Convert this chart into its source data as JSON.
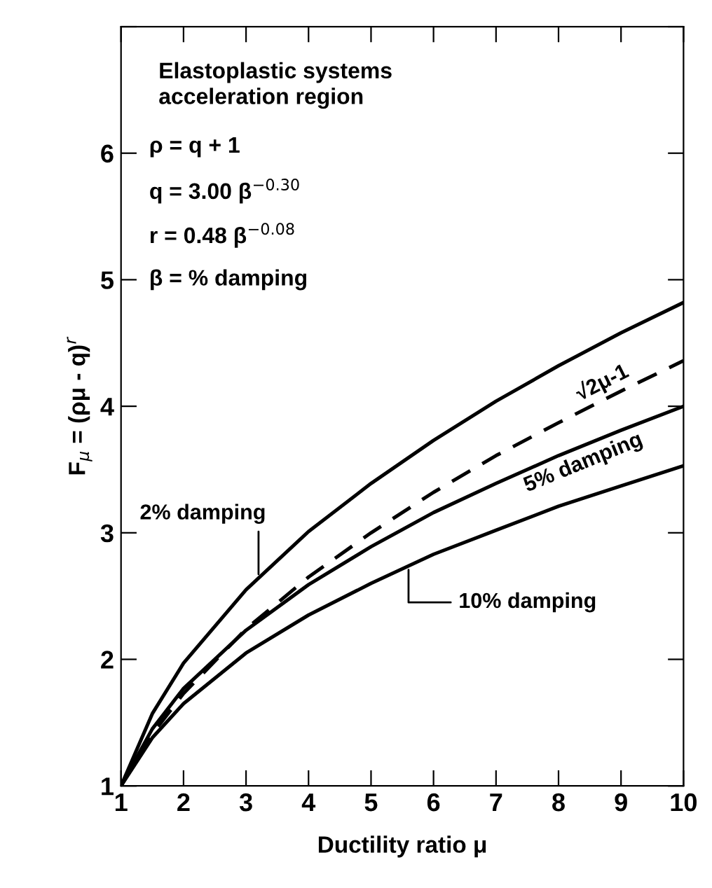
{
  "chart_data": {
    "type": "line",
    "xlabel": "Ductility ratio μ",
    "ylabel": "F$_{μ}$ = (ρμ - q)$^{r}$",
    "x": [
      1,
      1.5,
      2,
      3,
      4,
      5,
      6,
      7,
      8,
      9,
      10
    ],
    "series": [
      {
        "name": "2% damping",
        "color": "#000000",
        "line_style": "solid",
        "values": [
          1,
          1.57,
          1.97,
          2.55,
          3.01,
          3.39,
          3.73,
          4.04,
          4.32,
          4.58,
          4.82
        ]
      },
      {
        "name": "√2μ-1",
        "color": "#000000",
        "line_style": "dashed",
        "values": [
          1,
          1.41,
          1.73,
          2.24,
          2.65,
          3.0,
          3.32,
          3.61,
          3.87,
          4.12,
          4.36
        ]
      },
      {
        "name": "5% damping",
        "color": "#000000",
        "line_style": "solid",
        "values": [
          1,
          1.45,
          1.77,
          2.23,
          2.59,
          2.89,
          3.16,
          3.39,
          3.61,
          3.81,
          4.0
        ]
      },
      {
        "name": "10% damping",
        "color": "#000000",
        "line_style": "solid",
        "values": [
          1,
          1.38,
          1.65,
          2.05,
          2.35,
          2.6,
          2.83,
          3.02,
          3.21,
          3.37,
          3.53
        ]
      }
    ],
    "xlim": [
      1,
      10
    ],
    "xticks": [
      1,
      2,
      3,
      4,
      5,
      6,
      7,
      8,
      9,
      10
    ],
    "ylim": [
      1,
      7
    ],
    "yticks": [
      1,
      2,
      3,
      4,
      5,
      6,
      {
        "value": 7,
        "label": null
      }
    ],
    "annotations": [
      "Elastoplastic systems\nacceleration region",
      "ρ = q + 1",
      "q = 3.00 β$^{−0.30}$",
      "r = 0.48 β$^{−0.08}$",
      "β = % damping"
    ],
    "grid": false,
    "legend": false,
    "marker": "none"
  }
}
